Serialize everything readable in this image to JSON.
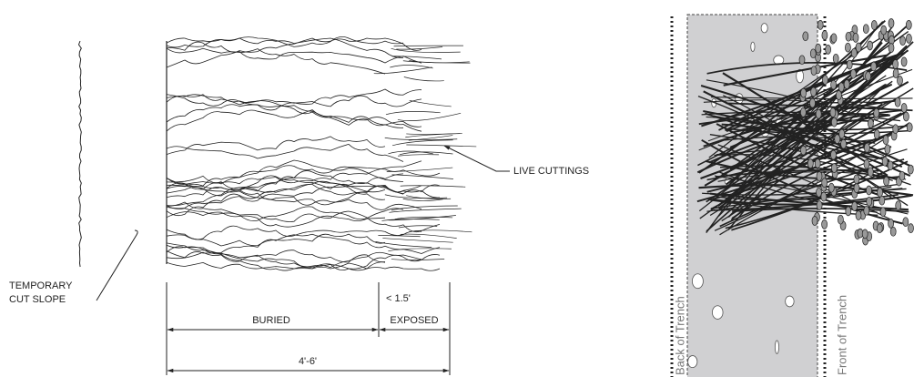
{
  "labels": {
    "cut_slope_line1": "TEMPORARY",
    "cut_slope_line2": "CUT SLOPE",
    "live_cuttings": "LIVE CUTTINGS",
    "exposed_limit": "< 1.5'",
    "buried": "BURIED",
    "exposed": "EXPOSED",
    "total_length": "4'-6'",
    "back_of_trench": "Back of Trench",
    "front_of_trench": "Front of Trench"
  }
}
